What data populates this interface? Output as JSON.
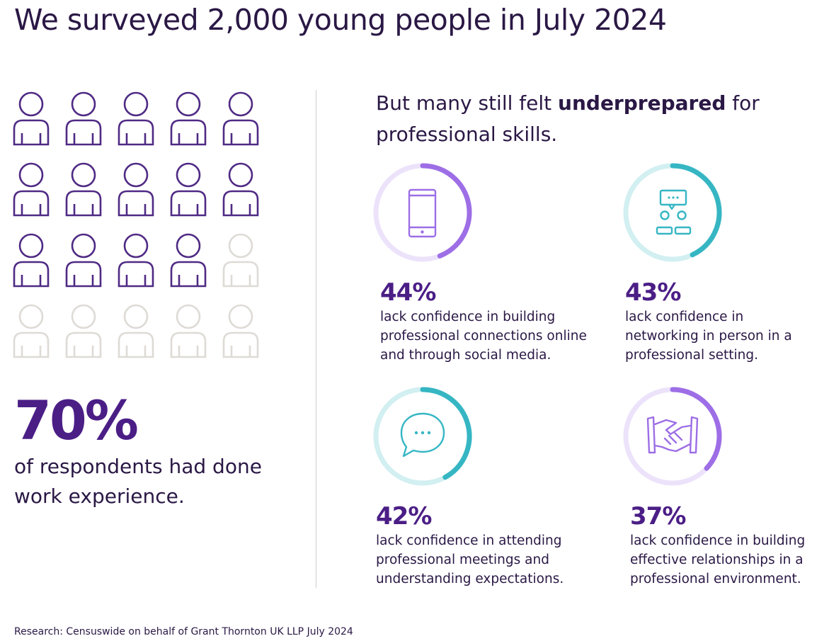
{
  "title": "We surveyed 2,000 young people in July 2024",
  "colors": {
    "purple": "#4b1e86",
    "person_filled": "#4f2a84",
    "person_empty": "#dedbd6",
    "violet_ring": "#9d6ee6",
    "violet_track": "#ece3fb",
    "teal_ring": "#36b6c3",
    "teal_track": "#d2eff1",
    "text": "#2a1845"
  },
  "left": {
    "people_total": 20,
    "people_filled": 14,
    "stat": "70%",
    "caption_line1": "of respondents had done",
    "caption_line2": "work experience."
  },
  "right": {
    "intro_pre": "But many still felt ",
    "intro_bold": "underprepared",
    "intro_post": " for",
    "intro_line2": "professional skills."
  },
  "chart_data": {
    "type": "donut",
    "series": [
      {
        "label": "44%",
        "value": 44,
        "icon": "smartphone-icon",
        "color": "violet",
        "lines": [
          "lack confidence in building",
          "professional connections online",
          "and through social media."
        ]
      },
      {
        "label": "43%",
        "value": 43,
        "icon": "networking-people-icon",
        "color": "teal",
        "lines": [
          "lack confidence in",
          "networking in person in a",
          "professional setting."
        ]
      },
      {
        "label": "42%",
        "value": 42,
        "icon": "speech-bubble-icon",
        "color": "teal",
        "lines": [
          "lack confidence in attending",
          "professional meetings and",
          "understanding expectations."
        ]
      },
      {
        "label": "37%",
        "value": 37,
        "icon": "handshake-icon",
        "color": "violet",
        "lines": [
          "lack confidence in building",
          "effective relationships in a",
          "professional environment."
        ]
      }
    ]
  },
  "source": "Research: Censuswide on behalf of Grant Thornton UK LLP July 2024"
}
